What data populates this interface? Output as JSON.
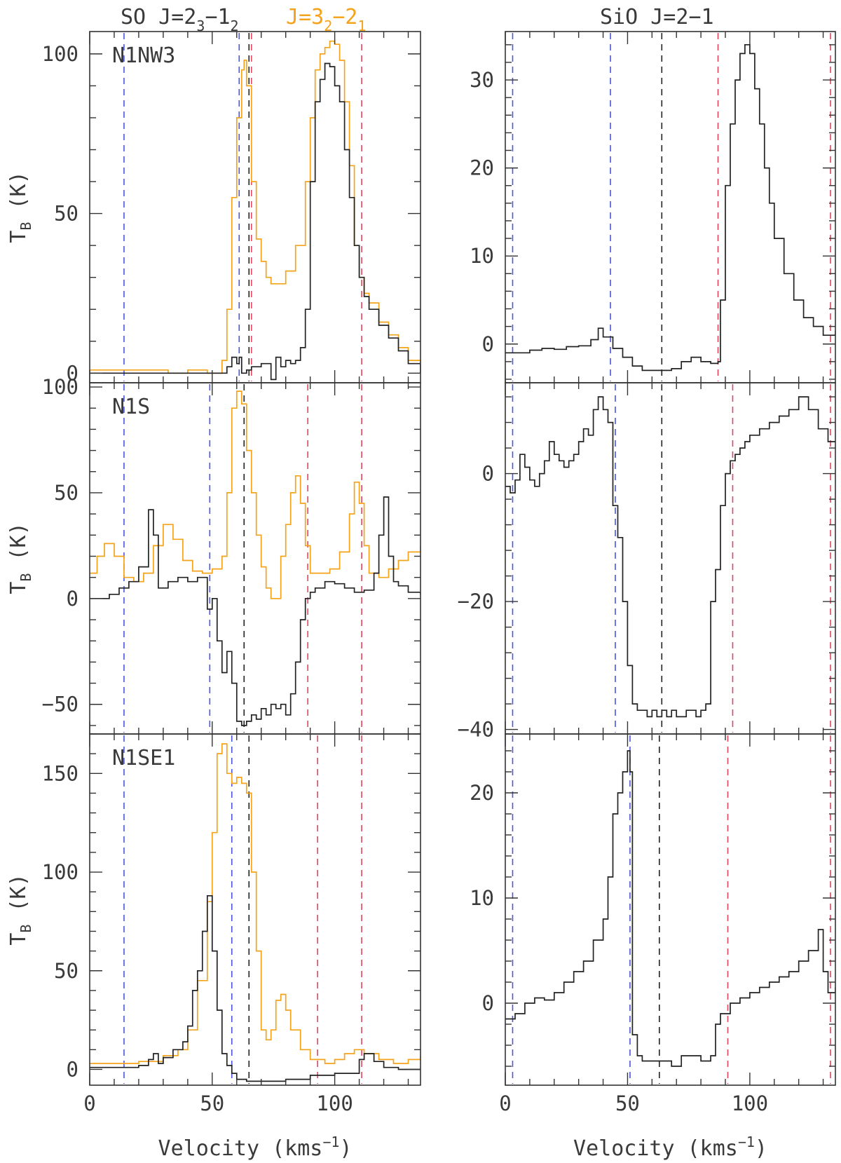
{
  "figure": {
    "header_left": {
      "so_line1": {
        "mol": "SO",
        "J": "J=2",
        "sup": "3",
        "dash": "−1",
        "sub": "2"
      },
      "so_line2": {
        "J": "J=3",
        "sup": "2",
        "dash": "−2",
        "sub": "1"
      }
    },
    "header_right": "SiO J=2−1",
    "xlabel": "Velocity (kms",
    "xlabel_exp": "−1",
    "xlabel_close": ")",
    "ylabel_main": "T",
    "ylabel_sub": "B",
    "ylabel_unit": " (K)"
  },
  "colors": {
    "so_23_12": "#222222",
    "so_32_21": "#f5a31a",
    "sio": "#222222",
    "blue_marker": "#4a55e0",
    "black_marker": "#222222",
    "red_marker": "#e0455f",
    "frame": "#333333"
  },
  "chart_data": [
    {
      "type": "line",
      "panel": "N1NW3 SO",
      "label": "N1NW3",
      "xlim": [
        0,
        135
      ],
      "ylim": [
        -3,
        107
      ],
      "xticks": [
        0,
        50,
        100
      ],
      "yticks": [
        0,
        50,
        100
      ],
      "markers": [
        {
          "x": 14,
          "color": "blue"
        },
        {
          "x": 61,
          "color": "blue"
        },
        {
          "x": 65,
          "color": "black"
        },
        {
          "x": 66,
          "color": "red"
        },
        {
          "x": 111,
          "color": "red"
        }
      ],
      "series": [
        {
          "key": "so_32_21",
          "x": [
            0,
            8,
            16,
            24,
            32,
            40,
            48,
            54,
            56,
            58,
            60,
            62,
            63,
            64,
            66,
            68,
            70,
            72,
            74,
            76,
            80,
            84,
            88,
            90,
            92,
            94,
            96,
            98,
            100,
            102,
            104,
            106,
            108,
            110,
            112,
            114,
            118,
            122,
            126,
            130,
            135
          ],
          "y": [
            1,
            1,
            1,
            1,
            0,
            1,
            0,
            4,
            20,
            55,
            80,
            95,
            98,
            90,
            60,
            42,
            35,
            30,
            28,
            28,
            32,
            40,
            60,
            80,
            95,
            100,
            102,
            104,
            103,
            98,
            85,
            65,
            40,
            30,
            25,
            22,
            16,
            12,
            8,
            4,
            0
          ]
        },
        {
          "key": "so_23_12",
          "x": [
            0,
            20,
            40,
            48,
            54,
            56,
            58,
            60,
            61,
            62,
            64,
            66,
            70,
            74,
            76,
            78,
            80,
            82,
            84,
            86,
            88,
            90,
            92,
            94,
            96,
            98,
            100,
            102,
            104,
            106,
            108,
            110,
            112,
            114,
            118,
            122,
            126,
            130,
            135
          ],
          "y": [
            0,
            0,
            0,
            0,
            0,
            2,
            5,
            3,
            5,
            0,
            1,
            2,
            3,
            -2,
            5,
            2,
            4,
            3,
            4,
            8,
            20,
            60,
            85,
            92,
            97,
            96,
            90,
            85,
            70,
            55,
            40,
            30,
            24,
            20,
            15,
            11,
            7,
            3,
            0
          ]
        }
      ]
    },
    {
      "type": "line",
      "panel": "N1NW3 SiO",
      "xlim": [
        0,
        135
      ],
      "ylim": [
        -4.4,
        35.5
      ],
      "xticks": [
        0,
        50,
        100
      ],
      "yticks": [
        0,
        10,
        20,
        30
      ],
      "markers": [
        {
          "x": 3,
          "color": "blue"
        },
        {
          "x": 43,
          "color": "blue"
        },
        {
          "x": 64,
          "color": "black"
        },
        {
          "x": 87,
          "color": "red"
        },
        {
          "x": 133,
          "color": "red"
        }
      ],
      "series": [
        {
          "key": "sio",
          "x": [
            0,
            5,
            10,
            15,
            20,
            25,
            30,
            35,
            38,
            40,
            44,
            48,
            52,
            56,
            60,
            64,
            68,
            72,
            76,
            80,
            84,
            87,
            88,
            90,
            92,
            94,
            96,
            98,
            100,
            102,
            104,
            106,
            108,
            110,
            114,
            118,
            122,
            126,
            130,
            135
          ],
          "y": [
            -1,
            -1,
            -0.7,
            -0.5,
            -0.6,
            -0.3,
            -0.2,
            0.5,
            1.8,
            0.8,
            -0.5,
            -1.5,
            -2.5,
            -3,
            -3,
            -3,
            -2.8,
            -2,
            -1.5,
            -2,
            -2.2,
            -2,
            5,
            18,
            25,
            30,
            33,
            34,
            33,
            29,
            25,
            20,
            16,
            12,
            8,
            5,
            3,
            2,
            1,
            1.5
          ]
        }
      ]
    },
    {
      "type": "line",
      "panel": "N1S SO",
      "label": "N1S",
      "xlim": [
        0,
        135
      ],
      "ylim": [
        -64,
        102
      ],
      "xticks": [
        0,
        50,
        100
      ],
      "yticks": [
        -50,
        0,
        50,
        100
      ],
      "markers": [
        {
          "x": 14,
          "color": "blue"
        },
        {
          "x": 49,
          "color": "blue"
        },
        {
          "x": 63,
          "color": "black"
        },
        {
          "x": 89,
          "color": "red"
        },
        {
          "x": 111,
          "color": "red"
        }
      ],
      "series": [
        {
          "key": "so_32_21",
          "x": [
            0,
            3,
            6,
            10,
            14,
            18,
            22,
            26,
            30,
            34,
            38,
            42,
            46,
            50,
            54,
            56,
            58,
            60,
            62,
            64,
            66,
            68,
            70,
            72,
            74,
            76,
            78,
            80,
            82,
            84,
            86,
            88,
            90,
            94,
            98,
            102,
            106,
            108,
            110,
            112,
            114,
            118,
            122,
            126,
            130,
            135
          ],
          "y": [
            12,
            20,
            26,
            20,
            10,
            8,
            12,
            25,
            35,
            28,
            18,
            13,
            12,
            14,
            20,
            50,
            90,
            98,
            92,
            70,
            50,
            30,
            15,
            5,
            0,
            0,
            20,
            35,
            50,
            58,
            45,
            25,
            12,
            12,
            14,
            22,
            40,
            55,
            45,
            25,
            12,
            10,
            14,
            18,
            22,
            25
          ]
        },
        {
          "key": "so_23_12",
          "x": [
            0,
            4,
            8,
            12,
            16,
            20,
            24,
            26,
            28,
            32,
            36,
            40,
            44,
            48,
            50,
            52,
            54,
            56,
            58,
            60,
            62,
            64,
            66,
            68,
            70,
            72,
            74,
            76,
            78,
            80,
            82,
            84,
            86,
            88,
            90,
            92,
            96,
            100,
            104,
            108,
            112,
            116,
            118,
            120,
            122,
            124,
            126,
            130,
            135
          ],
          "y": [
            0,
            0,
            2,
            5,
            8,
            15,
            42,
            30,
            5,
            8,
            10,
            8,
            10,
            -5,
            0,
            -20,
            -35,
            -25,
            -40,
            -58,
            -60,
            -58,
            -55,
            -57,
            -52,
            -55,
            -50,
            -52,
            -50,
            -55,
            -45,
            -30,
            -10,
            0,
            3,
            5,
            8,
            7,
            5,
            3,
            4,
            12,
            30,
            48,
            20,
            8,
            6,
            3,
            2
          ]
        }
      ]
    },
    {
      "type": "line",
      "panel": "N1S SiO",
      "xlim": [
        0,
        135
      ],
      "ylim": [
        -40.7,
        14.2
      ],
      "xticks": [
        0,
        50,
        100
      ],
      "yticks": [
        -40,
        -20,
        0
      ],
      "markers": [
        {
          "x": 3,
          "color": "blue"
        },
        {
          "x": 45,
          "color": "blue"
        },
        {
          "x": 64,
          "color": "black"
        },
        {
          "x": 93,
          "color": "red"
        },
        {
          "x": 133,
          "color": "red"
        }
      ],
      "series": [
        {
          "key": "sio",
          "x": [
            0,
            2,
            4,
            6,
            8,
            10,
            12,
            14,
            16,
            18,
            20,
            22,
            24,
            26,
            28,
            30,
            32,
            34,
            36,
            38,
            40,
            42,
            44,
            46,
            48,
            50,
            52,
            54,
            56,
            58,
            60,
            62,
            64,
            66,
            68,
            70,
            72,
            74,
            76,
            78,
            80,
            82,
            84,
            86,
            88,
            90,
            92,
            94,
            96,
            98,
            100,
            104,
            108,
            112,
            116,
            120,
            124,
            128,
            132,
            135
          ],
          "y": [
            -2,
            -3,
            -1,
            3,
            1,
            -1,
            -2,
            0,
            2,
            5,
            3,
            2,
            1,
            2,
            3,
            5,
            7,
            6,
            10,
            12,
            10,
            8,
            -5,
            -10,
            -20,
            -30,
            -36,
            -37,
            -37,
            -38,
            -37,
            -38,
            -37,
            -38,
            -37,
            -38,
            -38,
            -37,
            -37,
            -38,
            -37,
            -36,
            -20,
            -15,
            -5,
            0,
            2,
            3,
            4,
            5,
            6,
            7,
            8,
            9,
            10,
            12,
            10,
            7,
            5,
            5
          ]
        }
      ]
    },
    {
      "type": "line",
      "panel": "N1SE1 SO",
      "label": "N1SE1",
      "xlim": [
        0,
        135
      ],
      "ylim": [
        -8,
        170
      ],
      "xticks": [
        0,
        50,
        100
      ],
      "yticks": [
        0,
        50,
        100,
        150
      ],
      "markers": [
        {
          "x": 14,
          "color": "blue"
        },
        {
          "x": 58,
          "color": "blue"
        },
        {
          "x": 65,
          "color": "black"
        },
        {
          "x": 93,
          "color": "red"
        },
        {
          "x": 111,
          "color": "red"
        }
      ],
      "series": [
        {
          "key": "so_32_21",
          "x": [
            0,
            10,
            20,
            30,
            36,
            40,
            44,
            48,
            50,
            52,
            54,
            56,
            58,
            60,
            62,
            64,
            66,
            68,
            70,
            72,
            74,
            76,
            78,
            80,
            82,
            86,
            90,
            96,
            100,
            104,
            108,
            112,
            118,
            124,
            130,
            135
          ],
          "y": [
            3,
            3,
            4,
            7,
            10,
            20,
            45,
            85,
            120,
            160,
            165,
            150,
            145,
            148,
            145,
            140,
            100,
            60,
            20,
            15,
            20,
            35,
            38,
            30,
            20,
            10,
            5,
            3,
            5,
            8,
            10,
            8,
            5,
            3,
            5,
            7
          ]
        },
        {
          "key": "so_23_12",
          "x": [
            0,
            10,
            20,
            24,
            26,
            28,
            30,
            34,
            38,
            40,
            42,
            44,
            46,
            48,
            50,
            52,
            54,
            56,
            58,
            60,
            64,
            70,
            80,
            90,
            100,
            106,
            110,
            112,
            116,
            120,
            126,
            135
          ],
          "y": [
            1,
            1,
            2,
            5,
            8,
            3,
            6,
            10,
            14,
            22,
            40,
            50,
            70,
            88,
            60,
            30,
            8,
            2,
            -2,
            -5,
            -6,
            -6,
            -5,
            -3,
            -2,
            -2,
            5,
            8,
            4,
            1,
            0,
            0
          ]
        }
      ]
    },
    {
      "type": "line",
      "panel": "N1SE1 SiO",
      "xlim": [
        0,
        135
      ],
      "ylim": [
        -7.8,
        25.6
      ],
      "xticks": [
        0,
        50,
        100
      ],
      "yticks": [
        0,
        10,
        20
      ],
      "markers": [
        {
          "x": 3,
          "color": "blue"
        },
        {
          "x": 51,
          "color": "blue"
        },
        {
          "x": 63,
          "color": "black"
        },
        {
          "x": 91,
          "color": "red"
        },
        {
          "x": 133,
          "color": "red"
        }
      ],
      "series": [
        {
          "key": "sio",
          "x": [
            0,
            4,
            8,
            12,
            16,
            20,
            24,
            28,
            32,
            36,
            40,
            42,
            44,
            46,
            48,
            50,
            51,
            52,
            54,
            56,
            60,
            64,
            68,
            72,
            76,
            80,
            84,
            86,
            88,
            92,
            96,
            100,
            104,
            108,
            112,
            116,
            120,
            124,
            126,
            128,
            130,
            132,
            135
          ],
          "y": [
            -1.5,
            -1,
            0,
            0.5,
            0.3,
            1,
            2,
            3,
            4,
            6,
            8,
            12,
            18,
            20,
            22,
            24,
            22,
            -3,
            -5,
            -5.5,
            -5.5,
            -5.5,
            -6,
            -5,
            -5,
            -5.5,
            -5,
            -2,
            -1,
            0,
            0.5,
            1,
            1.5,
            2,
            2.5,
            3,
            4,
            5,
            5,
            7,
            3,
            1,
            1.5
          ]
        }
      ]
    }
  ]
}
